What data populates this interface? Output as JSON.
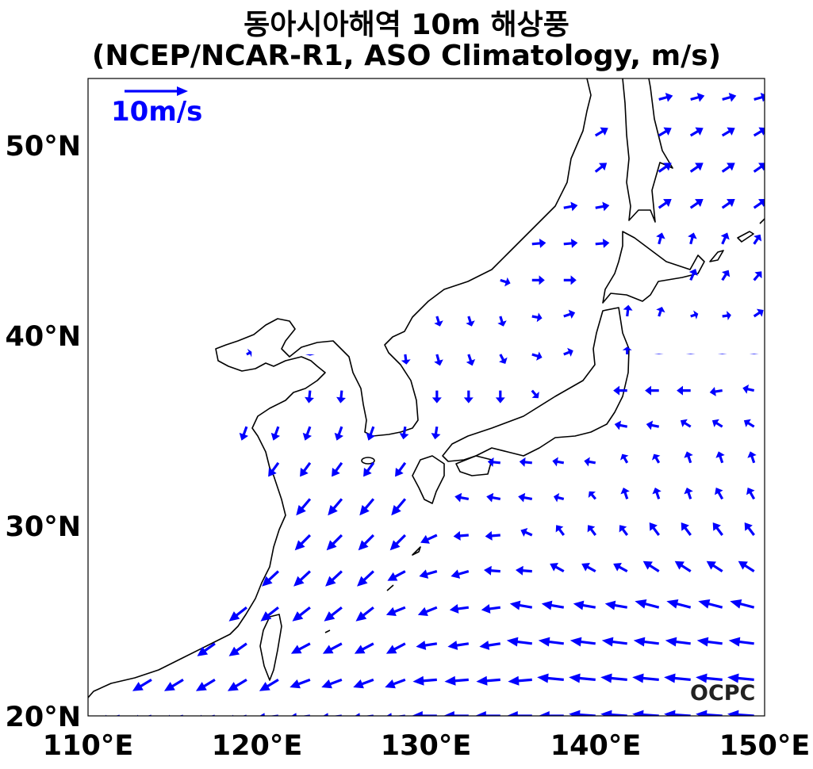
{
  "title": {
    "line1": "동아시아해역 10m 해상풍",
    "line2": "(NCEP/NCAR-R1, ASO Climatology, m/s)"
  },
  "logo": "OCPC",
  "chart_data": {
    "type": "quiver",
    "title": "동아시아해역 10m 해상풍 (NCEP/NCAR-R1, ASO Climatology, m/s)",
    "xlim": [
      110,
      150
    ],
    "ylim": [
      20,
      53.5
    ],
    "x_ticks": [
      "110°E",
      "120°E",
      "130°E",
      "140°E",
      "150°E"
    ],
    "y_ticks": [
      "20°N",
      "30°N",
      "40°N",
      "50°N"
    ],
    "key": {
      "label": "10m/s",
      "value": 10,
      "color": "#0000ff"
    },
    "vector_color": "#0000ff",
    "grid": false,
    "lon": [
      110,
      111.875,
      113.75,
      115.625,
      117.5,
      119.375,
      121.25,
      123.125,
      125,
      126.875,
      128.75,
      130.625,
      132.5,
      134.375,
      136.25,
      138.125,
      140,
      141.875,
      143.75,
      145.625,
      147.5,
      149.375
    ],
    "rows": [
      {
        "lat": 20.0,
        "u": [
          -3.5,
          -3.5,
          -3.5,
          -3.5,
          -3.5,
          -3.5,
          -3.8,
          -3.8,
          -3.8,
          -3.8,
          -3.8,
          -4,
          -4,
          -4,
          -4,
          -4,
          -4.2,
          -4.2,
          -4.2,
          -4.2,
          -4.2,
          -4.2
        ],
        "v": [
          -1,
          -1,
          -1,
          -1,
          -1,
          -1,
          -0.5,
          -0.5,
          -0.5,
          -0.5,
          -0.5,
          0,
          0,
          0,
          0,
          0,
          0.3,
          0.3,
          0.3,
          0.3,
          0.3,
          0.3
        ]
      },
      {
        "lat": 21.9,
        "u": [
          null,
          null,
          -3,
          -3,
          -3,
          -3,
          -3,
          -3.2,
          -3.2,
          -3.2,
          -3.2,
          -3.8,
          -3.8,
          -3.8,
          -3.8,
          -4.2,
          -4.2,
          -4.2,
          -4.2,
          -4.2,
          -4.2,
          -4.2
        ],
        "v": [
          null,
          null,
          -1.8,
          -1.8,
          -1.8,
          -1.8,
          -1.8,
          -1.2,
          -1.2,
          -1.2,
          -1.2,
          -0.3,
          -0.3,
          -0.3,
          -0.3,
          0.4,
          0.4,
          0.4,
          0.4,
          0.4,
          0.4,
          0.4
        ]
      },
      {
        "lat": 23.8,
        "u": [
          null,
          null,
          null,
          null,
          -2.8,
          -2.8,
          null,
          -3,
          -3,
          -3,
          -3,
          -3.3,
          -3.3,
          -3.3,
          -4,
          -4,
          -4,
          -4,
          -4,
          -4,
          -4,
          -4
        ],
        "v": [
          null,
          null,
          null,
          null,
          -2,
          -2,
          null,
          -1.6,
          -1.6,
          -1.6,
          -1.6,
          -0.5,
          -0.5,
          -0.5,
          0.5,
          0.5,
          0.5,
          0.5,
          0.5,
          0.5,
          0.5,
          0.5
        ]
      },
      {
        "lat": 25.7,
        "u": [
          null,
          null,
          null,
          null,
          null,
          -2.8,
          -2.8,
          -2.8,
          -2.8,
          -2.8,
          -3,
          -3,
          -3,
          -3,
          -3.5,
          -3.5,
          -3.5,
          -3.5,
          -3.8,
          -3.8,
          -3.8,
          -3.8
        ],
        "v": [
          null,
          null,
          null,
          null,
          null,
          -2.2,
          -2.2,
          -2.2,
          -2.2,
          -2.2,
          -1.2,
          -1.2,
          -0.4,
          -0.4,
          0.6,
          0.6,
          0.6,
          0.6,
          1,
          1,
          1,
          1
        ]
      },
      {
        "lat": 27.6,
        "u": [
          null,
          null,
          null,
          null,
          null,
          null,
          -2.6,
          -2.6,
          -2.6,
          -2.6,
          -2.8,
          -2.8,
          -2.8,
          -2.6,
          -2.6,
          -2.2,
          -2.2,
          -2.2,
          -2.5,
          -2.5,
          -2.5,
          -2.5
        ],
        "v": [
          null,
          null,
          null,
          null,
          null,
          null,
          -2.4,
          -2.4,
          -2.4,
          -2.4,
          -1.5,
          -0.8,
          -0.8,
          0.2,
          0.2,
          1.2,
          1.2,
          1.2,
          1.6,
          1.6,
          1.6,
          1.6
        ]
      },
      {
        "lat": 29.5,
        "u": [
          null,
          null,
          null,
          null,
          null,
          null,
          null,
          -2.4,
          -2.4,
          -2.4,
          -2.4,
          -2.6,
          -2.4,
          -2.4,
          -1.8,
          -1.2,
          -1.2,
          -1.2,
          -1.5,
          -1.5,
          -1.5,
          -1.5
        ],
        "v": [
          null,
          null,
          null,
          null,
          null,
          null,
          null,
          -2.4,
          -2.4,
          -2.4,
          -2.4,
          -1.2,
          -0.2,
          -0.2,
          0.8,
          1.6,
          1.6,
          1.6,
          2,
          2,
          2,
          2
        ]
      },
      {
        "lat": 31.4,
        "u": [
          null,
          null,
          null,
          null,
          null,
          null,
          null,
          -2.2,
          -2.2,
          -2.2,
          -2.2,
          null,
          -2.2,
          -2.2,
          -2.2,
          -1.6,
          -1,
          -0.6,
          -0.6,
          -0.6,
          -1,
          -1
        ],
        "v": [
          null,
          null,
          null,
          null,
          null,
          null,
          null,
          -2.6,
          -2.6,
          -2.6,
          -2.6,
          null,
          0.4,
          0.4,
          0.4,
          0.4,
          1.2,
          1.8,
          1.8,
          1.8,
          1.8,
          1.8
        ]
      },
      {
        "lat": 33.3,
        "u": [
          null,
          null,
          null,
          null,
          null,
          null,
          -1.6,
          -1.6,
          -1.6,
          -1.6,
          -1.6,
          null,
          null,
          -2,
          -2,
          -1.8,
          -1.8,
          -0.8,
          -0.8,
          -0.6,
          -0.6,
          -0.6
        ],
        "v": [
          null,
          null,
          null,
          null,
          null,
          null,
          -2.2,
          -2.2,
          -2.2,
          -2.2,
          -2.2,
          null,
          null,
          0.2,
          0.2,
          0.3,
          0.3,
          1.4,
          1.4,
          1.8,
          1.8,
          1.8
        ]
      },
      {
        "lat": 35.2,
        "u": [
          null,
          null,
          null,
          null,
          null,
          -0.8,
          -0.8,
          -0.8,
          -0.8,
          -0.8,
          -0.3,
          -0.3,
          null,
          null,
          null,
          null,
          null,
          -2,
          -2,
          -1.6,
          -1.6,
          -1.6
        ],
        "v": [
          null,
          null,
          null,
          null,
          null,
          -2.2,
          -2.2,
          -2.2,
          -2.2,
          -2.2,
          -2,
          -2,
          null,
          null,
          null,
          null,
          null,
          0.4,
          0.4,
          1,
          1,
          1
        ]
      },
      {
        "lat": 37.1,
        "u": [
          null,
          null,
          null,
          null,
          null,
          null,
          null,
          -0.2,
          -0.2,
          null,
          null,
          0,
          0,
          0,
          1,
          null,
          null,
          -2.2,
          -2.2,
          -2.2,
          -2,
          -1.8
        ],
        "v": [
          null,
          null,
          null,
          null,
          null,
          null,
          null,
          -2,
          -2,
          null,
          null,
          -2,
          -2,
          -2,
          -1.2,
          null,
          null,
          0,
          0,
          0,
          -0.3,
          0.4
        ]
      },
      {
        "lat": 39.0,
        "u": [
          null,
          null,
          null,
          null,
          null,
          0.8,
          null,
          0,
          null,
          null,
          0.2,
          0.5,
          0.6,
          0.8,
          1.6,
          1.5,
          null,
          0,
          0,
          0,
          0,
          0
        ],
        "v": [
          null,
          null,
          null,
          null,
          null,
          0.4,
          null,
          -0.2,
          null,
          null,
          -1.6,
          -1.8,
          -1.8,
          -1.5,
          -0.5,
          0.6,
          null,
          1.2,
          0.1,
          0.1,
          0.1,
          0.1
        ]
      },
      {
        "lat": 41.0,
        "u": [
          null,
          null,
          null,
          null,
          null,
          null,
          null,
          null,
          null,
          null,
          null,
          0.5,
          0.5,
          0.5,
          1.6,
          1.8,
          null,
          0.2,
          0.5,
          1.2,
          1.4,
          1.5
        ],
        "v": [
          null,
          null,
          null,
          null,
          null,
          null,
          null,
          null,
          null,
          null,
          null,
          -1.6,
          -1.6,
          -1.6,
          -0.3,
          0.6,
          null,
          1.8,
          1.5,
          0.4,
          0.2,
          1
        ]
      },
      {
        "lat": 42.9,
        "u": [
          null,
          null,
          null,
          null,
          null,
          null,
          null,
          null,
          null,
          null,
          null,
          null,
          null,
          1.6,
          2,
          2,
          null,
          null,
          null,
          0.8,
          1,
          1.2
        ],
        "v": [
          null,
          null,
          null,
          null,
          null,
          null,
          null,
          null,
          null,
          null,
          null,
          null,
          null,
          -0.5,
          0,
          0,
          null,
          null,
          null,
          1.8,
          1.6,
          1.4
        ]
      },
      {
        "lat": 44.8,
        "u": [
          null,
          null,
          null,
          null,
          null,
          null,
          null,
          null,
          null,
          null,
          null,
          null,
          null,
          null,
          2.2,
          2.2,
          2.2,
          null,
          0.5,
          0.5,
          0.8,
          1
        ],
        "v": [
          null,
          null,
          null,
          null,
          null,
          null,
          null,
          null,
          null,
          null,
          null,
          null,
          null,
          null,
          0.2,
          0.2,
          0.2,
          null,
          1.8,
          1.8,
          1.8,
          1.5
        ]
      },
      {
        "lat": 46.7,
        "u": [
          null,
          null,
          null,
          null,
          null,
          null,
          null,
          null,
          null,
          null,
          null,
          null,
          null,
          null,
          null,
          2.2,
          2.2,
          null,
          2,
          2,
          2,
          2
        ],
        "v": [
          null,
          null,
          null,
          null,
          null,
          null,
          null,
          null,
          null,
          null,
          null,
          null,
          null,
          null,
          null,
          0.4,
          0.4,
          null,
          1.4,
          1.4,
          1.4,
          1.4
        ]
      },
      {
        "lat": 48.6,
        "u": [
          null,
          null,
          null,
          null,
          null,
          null,
          null,
          null,
          null,
          null,
          null,
          null,
          null,
          null,
          null,
          null,
          1.8,
          null,
          2,
          2,
          2,
          2
        ],
        "v": [
          null,
          null,
          null,
          null,
          null,
          null,
          null,
          null,
          null,
          null,
          null,
          null,
          null,
          null,
          null,
          null,
          1.4,
          null,
          1.4,
          1.4,
          1.4,
          1.4
        ]
      },
      {
        "lat": 50.5,
        "u": [
          null,
          null,
          null,
          null,
          null,
          null,
          null,
          null,
          null,
          null,
          null,
          null,
          null,
          null,
          null,
          null,
          2,
          null,
          2,
          2,
          2,
          2
        ],
        "v": [
          null,
          null,
          null,
          null,
          null,
          null,
          null,
          null,
          null,
          null,
          null,
          null,
          null,
          null,
          null,
          null,
          1.2,
          null,
          1.2,
          1.2,
          1.2,
          1.2
        ]
      },
      {
        "lat": 52.4,
        "u": [
          null,
          null,
          null,
          null,
          null,
          null,
          null,
          null,
          null,
          null,
          null,
          null,
          null,
          null,
          null,
          null,
          null,
          null,
          2.2,
          2.2,
          2.2,
          2.2
        ],
        "v": [
          null,
          null,
          null,
          null,
          null,
          null,
          null,
          null,
          null,
          null,
          null,
          null,
          null,
          null,
          null,
          null,
          null,
          null,
          0.6,
          0.6,
          0.6,
          0.6
        ]
      }
    ]
  }
}
